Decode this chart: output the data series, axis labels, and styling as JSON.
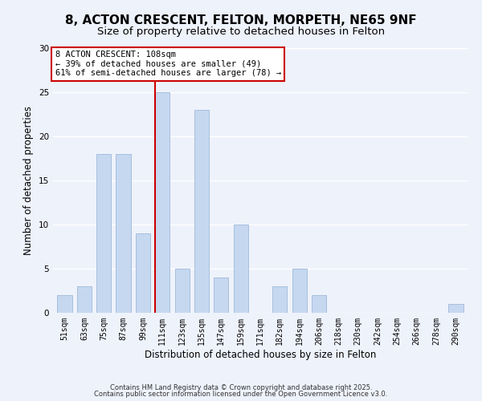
{
  "title": "8, ACTON CRESCENT, FELTON, MORPETH, NE65 9NF",
  "subtitle": "Size of property relative to detached houses in Felton",
  "xlabel": "Distribution of detached houses by size in Felton",
  "ylabel": "Number of detached properties",
  "bar_labels": [
    "51sqm",
    "63sqm",
    "75sqm",
    "87sqm",
    "99sqm",
    "111sqm",
    "123sqm",
    "135sqm",
    "147sqm",
    "159sqm",
    "171sqm",
    "182sqm",
    "194sqm",
    "206sqm",
    "218sqm",
    "230sqm",
    "242sqm",
    "254sqm",
    "266sqm",
    "278sqm",
    "290sqm"
  ],
  "bar_values": [
    2,
    3,
    18,
    18,
    9,
    25,
    5,
    23,
    4,
    10,
    0,
    3,
    5,
    2,
    0,
    0,
    0,
    0,
    0,
    0,
    1
  ],
  "bar_color": "#c5d8f0",
  "bar_edge_color": "#a0b8d8",
  "highlight_index": 5,
  "highlight_line_color": "#cc0000",
  "ylim": [
    0,
    30
  ],
  "yticks": [
    0,
    5,
    10,
    15,
    20,
    25,
    30
  ],
  "annotation_title": "8 ACTON CRESCENT: 108sqm",
  "annotation_line1": "← 39% of detached houses are smaller (49)",
  "annotation_line2": "61% of semi-detached houses are larger (78) →",
  "annotation_box_color": "#ffffff",
  "annotation_box_edge": "#cc0000",
  "footnote1": "Contains HM Land Registry data © Crown copyright and database right 2025.",
  "footnote2": "Contains public sector information licensed under the Open Government Licence v3.0.",
  "bg_color": "#eef2fb",
  "grid_color": "#ffffff",
  "title_fontsize": 11,
  "subtitle_fontsize": 9.5,
  "tick_fontsize": 7,
  "ylabel_fontsize": 8.5,
  "xlabel_fontsize": 8.5,
  "footnote_fontsize": 6.0
}
